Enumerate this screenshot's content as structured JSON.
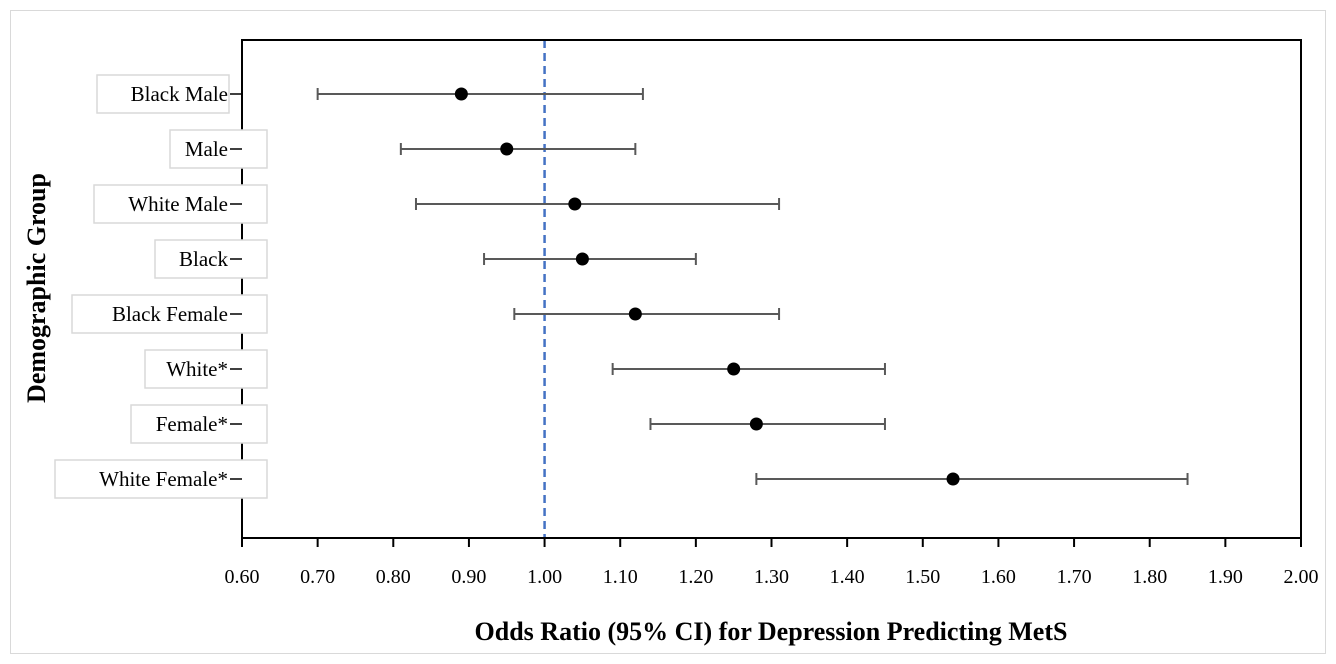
{
  "chart_data": {
    "type": "forest",
    "xlabel": "Odds Ratio (95% CI) for Depression Predicting MetS",
    "ylabel": "Demographic Group",
    "xlim": [
      0.6,
      2.0
    ],
    "x_ticks": [
      "0.60",
      "0.70",
      "0.80",
      "0.90",
      "1.00",
      "1.10",
      "1.20",
      "1.30",
      "1.40",
      "1.50",
      "1.60",
      "1.70",
      "1.80",
      "1.90",
      "2.00"
    ],
    "reference_line": 1.0,
    "grid": false,
    "colors": {
      "reference_line": "#4472c4",
      "error_bar": "#595959",
      "point": "#000000",
      "label_box": "#d9d9d9"
    },
    "groups": [
      {
        "label": "Black Male",
        "or": 0.89,
        "lower": 0.7,
        "upper": 1.13
      },
      {
        "label": "Male",
        "or": 0.95,
        "lower": 0.81,
        "upper": 1.12
      },
      {
        "label": "White Male",
        "or": 1.04,
        "lower": 0.83,
        "upper": 1.31
      },
      {
        "label": "Black",
        "or": 1.05,
        "lower": 0.92,
        "upper": 1.2
      },
      {
        "label": "Black Female",
        "or": 1.12,
        "lower": 0.96,
        "upper": 1.31
      },
      {
        "label": "White*",
        "or": 1.25,
        "lower": 1.09,
        "upper": 1.45
      },
      {
        "label": "Female*",
        "or": 1.28,
        "lower": 1.14,
        "upper": 1.45
      },
      {
        "label": "White Female*",
        "or": 1.54,
        "lower": 1.28,
        "upper": 1.85
      }
    ]
  }
}
